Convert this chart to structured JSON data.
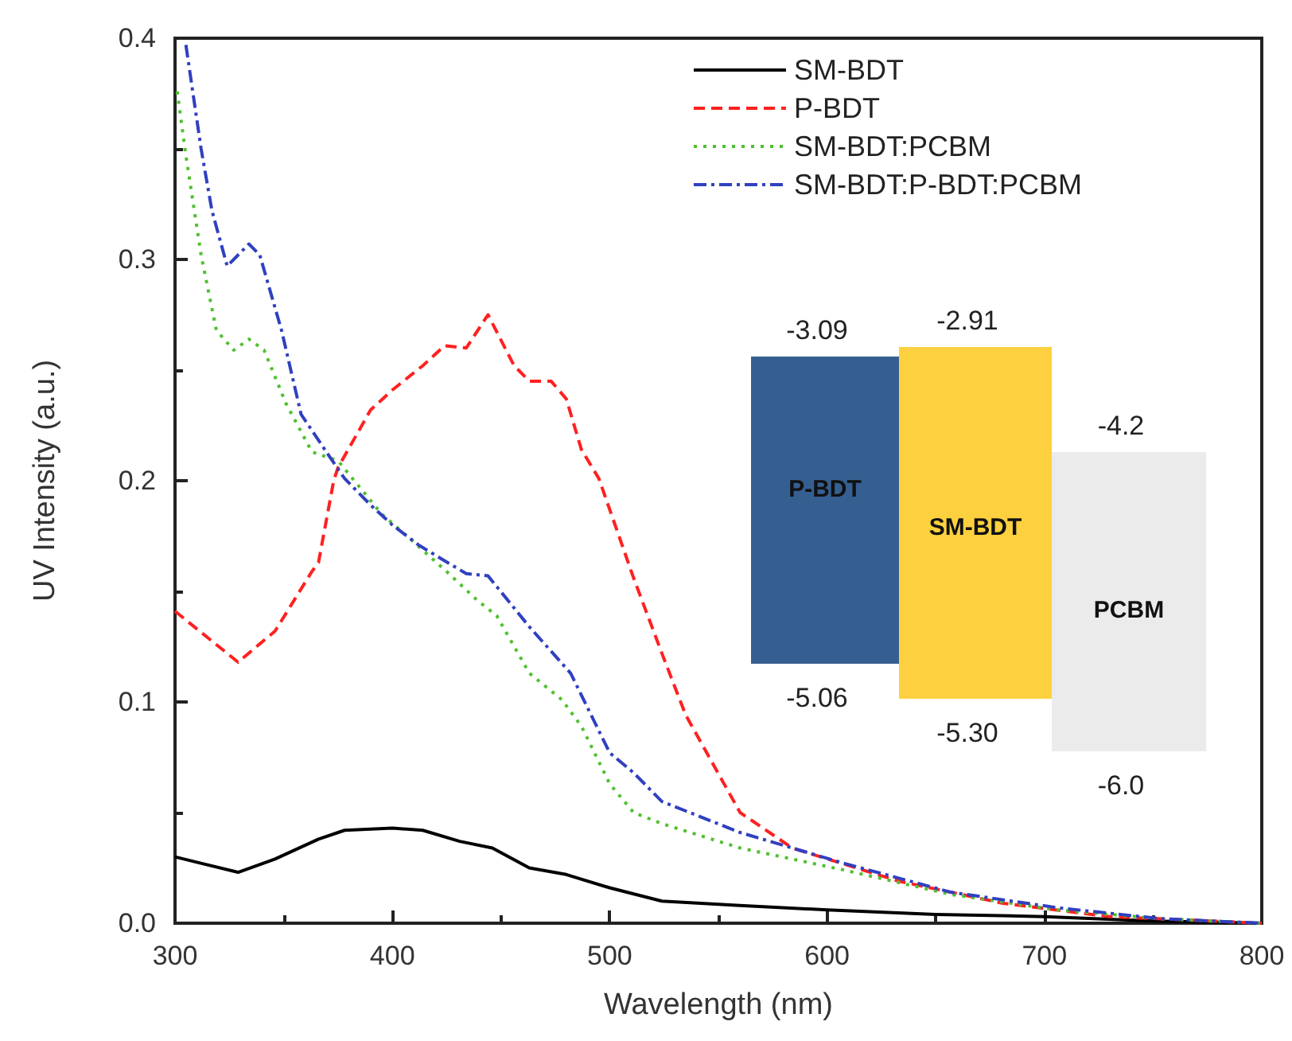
{
  "chart_data": {
    "type": "line",
    "xlabel": "Wavelength (nm)",
    "ylabel": "UV Intensity (a.u.)",
    "xlim": [
      300,
      800
    ],
    "xticks": [
      300,
      400,
      500,
      600,
      700,
      800
    ],
    "ylim": [
      0,
      0.4
    ],
    "yticks": [
      {
        "value": 0,
        "label": "0.0"
      },
      0.1,
      0.2,
      0.3,
      0.4
    ],
    "grid": false,
    "legend": "top right",
    "marker": "none",
    "series": [
      {
        "name": "SM-BDT",
        "color": "#000000",
        "line_style": "solid",
        "x": [
          300,
          329,
          346,
          366,
          378,
          400,
          414,
          431,
          446,
          463,
          480,
          500,
          524,
          560,
          600,
          650,
          700,
          750,
          800
        ],
        "values": [
          0.03,
          0.023,
          0.029,
          0.038,
          0.042,
          0.043,
          0.042,
          0.037,
          0.034,
          0.025,
          0.022,
          0.016,
          0.01,
          0.008,
          0.006,
          0.004,
          0.003,
          0.001,
          0.0
        ]
      },
      {
        "name": "P-BDT",
        "color": "#ff2020",
        "line_style": "dashed",
        "x": [
          300,
          329,
          346,
          363,
          366,
          373,
          375,
          390,
          400,
          414,
          424,
          434,
          444,
          456,
          463,
          473,
          480,
          487,
          495,
          511,
          524,
          535,
          560,
          584,
          633,
          681,
          730,
          800
        ],
        "values": [
          0.141,
          0.118,
          0.132,
          0.159,
          0.163,
          0.2,
          0.206,
          0.232,
          0.241,
          0.252,
          0.261,
          0.26,
          0.275,
          0.252,
          0.245,
          0.245,
          0.237,
          0.214,
          0.201,
          0.156,
          0.122,
          0.094,
          0.05,
          0.034,
          0.019,
          0.009,
          0.003,
          0.0
        ]
      },
      {
        "name": "SM-BDT:PCBM",
        "color": "#50c030",
        "line_style": "dotted",
        "x": [
          301,
          305,
          312,
          319,
          327,
          334,
          341,
          351,
          363,
          375,
          395,
          409,
          426,
          439,
          448,
          463,
          478,
          487,
          500,
          511,
          524,
          560,
          608,
          657,
          706,
          754,
          800
        ],
        "values": [
          0.376,
          0.347,
          0.302,
          0.268,
          0.259,
          0.264,
          0.259,
          0.235,
          0.213,
          0.209,
          0.185,
          0.173,
          0.158,
          0.146,
          0.139,
          0.113,
          0.101,
          0.089,
          0.063,
          0.05,
          0.045,
          0.034,
          0.024,
          0.013,
          0.006,
          0.002,
          0.0
        ]
      },
      {
        "name": "SM-BDT:P-BDT:PCBM",
        "color": "#3040c0",
        "line_style": "dashdot",
        "x": [
          305,
          312,
          317,
          324,
          334,
          339,
          349,
          358,
          371,
          378,
          390,
          400,
          412,
          422,
          434,
          444,
          463,
          482,
          500,
          511,
          524,
          560,
          608,
          657,
          706,
          754,
          800
        ],
        "values": [
          0.397,
          0.35,
          0.322,
          0.297,
          0.307,
          0.302,
          0.268,
          0.23,
          0.211,
          0.201,
          0.189,
          0.18,
          0.171,
          0.165,
          0.158,
          0.157,
          0.134,
          0.113,
          0.077,
          0.068,
          0.055,
          0.041,
          0.027,
          0.014,
          0.007,
          0.002,
          0.0
        ]
      }
    ],
    "annotations": [
      "P-BDT",
      "SM-BDT",
      "PCBM",
      "-3.09",
      "-5.06",
      "-2.91",
      "-5.30",
      "-4.2",
      "-6.0"
    ]
  }
}
